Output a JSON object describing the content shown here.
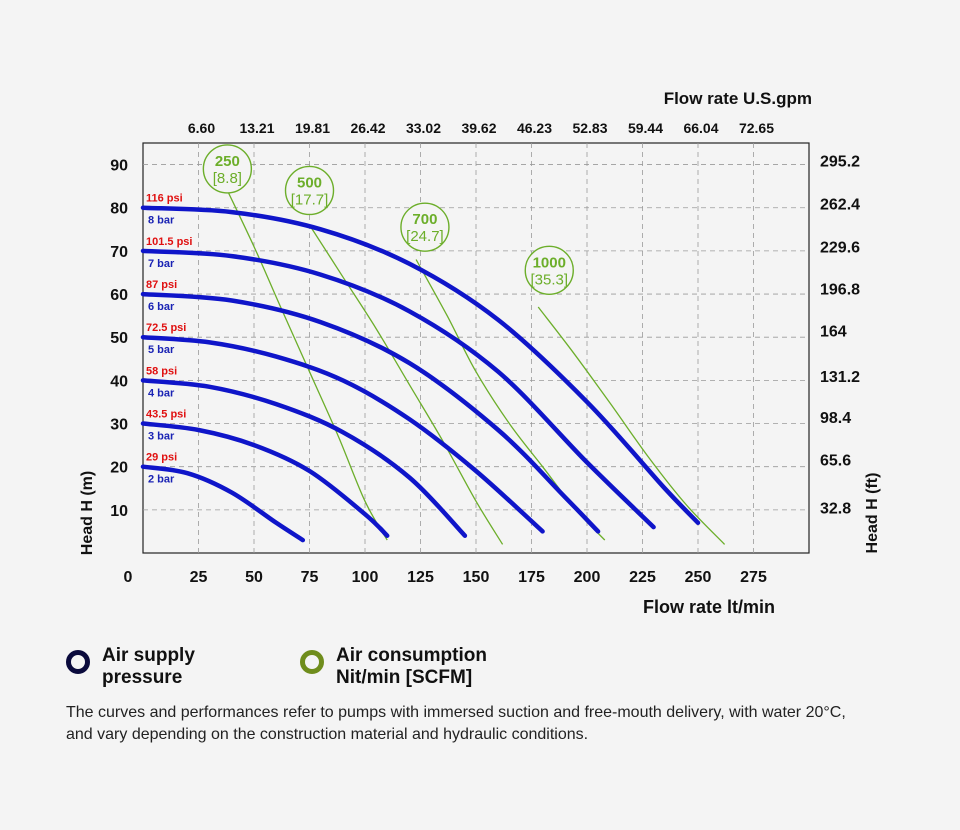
{
  "chart_data": {
    "type": "line",
    "xlabel_bottom": "Flow rate lt/min",
    "xlabel_top": "Flow rate U.S.gpm",
    "ylabel_left": "Head H (m)",
    "ylabel_right": "Head H (ft)",
    "xlim": [
      0,
      300
    ],
    "ylim": [
      0,
      95
    ],
    "x_ticks": [
      25,
      50,
      75,
      100,
      125,
      150,
      175,
      200,
      225,
      250,
      275
    ],
    "x_origin_label": "0",
    "y_ticks": [
      10,
      20,
      30,
      40,
      50,
      60,
      70,
      80,
      90
    ],
    "top_ticks": [
      {
        "x": 25,
        "label": "6.60"
      },
      {
        "x": 50,
        "label": "13.21"
      },
      {
        "x": 75,
        "label": "19.81"
      },
      {
        "x": 100,
        "label": "26.42"
      },
      {
        "x": 125,
        "label": "33.02"
      },
      {
        "x": 150,
        "label": "39.62"
      },
      {
        "x": 175,
        "label": "46.23"
      },
      {
        "x": 200,
        "label": "52.83"
      },
      {
        "x": 225,
        "label": "59.44"
      },
      {
        "x": 250,
        "label": "66.04"
      },
      {
        "x": 275,
        "label": "72.65"
      }
    ],
    "right_ticks": [
      {
        "y": 91,
        "label": "295.2"
      },
      {
        "y": 81,
        "label": "262.4"
      },
      {
        "y": 71,
        "label": "229.6"
      },
      {
        "y": 61.3,
        "label": "196.8"
      },
      {
        "y": 51.5,
        "label": "164"
      },
      {
        "y": 41,
        "label": "131.2"
      },
      {
        "y": 31.5,
        "label": "98.4"
      },
      {
        "y": 21.7,
        "label": "65.6"
      },
      {
        "y": 10.6,
        "label": "32.8"
      }
    ],
    "grid": true,
    "pressure_series": [
      {
        "psi": "29 psi",
        "bar": "2 bar",
        "x": [
          0,
          20,
          40,
          60,
          72
        ],
        "y": [
          20,
          18.5,
          14,
          7,
          3
        ]
      },
      {
        "psi": "43.5 psi",
        "bar": "3 bar",
        "x": [
          0,
          25,
          50,
          75,
          100,
          110
        ],
        "y": [
          30,
          28.5,
          25,
          19,
          9,
          4
        ]
      },
      {
        "psi": "58 psi",
        "bar": "4 bar",
        "x": [
          0,
          30,
          60,
          90,
          120,
          145
        ],
        "y": [
          40,
          38.5,
          34.5,
          28,
          17.5,
          4
        ]
      },
      {
        "psi": "72.5 psi",
        "bar": "5 bar",
        "x": [
          0,
          30,
          60,
          90,
          120,
          150,
          180
        ],
        "y": [
          50,
          48.8,
          45.5,
          40,
          31,
          19,
          5
        ]
      },
      {
        "psi": "87 psi",
        "bar": "6 bar",
        "x": [
          0,
          40,
          80,
          120,
          160,
          190,
          205
        ],
        "y": [
          60,
          58.5,
          53.5,
          44,
          28.5,
          13,
          5
        ]
      },
      {
        "psi": "101.5 psi",
        "bar": "7 bar",
        "x": [
          0,
          40,
          80,
          120,
          160,
          200,
          230
        ],
        "y": [
          70,
          68.8,
          64.5,
          56,
          42,
          21,
          6
        ]
      },
      {
        "psi": "116 psi",
        "bar": "8 bar",
        "x": [
          0,
          40,
          80,
          120,
          160,
          200,
          235,
          250
        ],
        "y": [
          80,
          79,
          75,
          67,
          54,
          35,
          15,
          7
        ]
      }
    ],
    "consumption_series": [
      {
        "value": "250",
        "scfm": "[8.8]",
        "label_x": 38,
        "label_y": 89,
        "x": [
          38,
          50,
          62,
          75,
          88,
          100,
          110
        ],
        "y": [
          84,
          71,
          57,
          42,
          27,
          12,
          3
        ]
      },
      {
        "value": "500",
        "scfm": "[17.7]",
        "label_x": 75,
        "label_y": 84,
        "x": [
          75,
          90,
          105,
          120,
          135,
          150,
          162
        ],
        "y": [
          76,
          64,
          52,
          39,
          26,
          12,
          2
        ]
      },
      {
        "value": "700",
        "scfm": "[24.7]",
        "label_x": 127,
        "label_y": 75.5,
        "x": [
          123,
          137,
          150,
          165,
          180,
          195,
          208
        ],
        "y": [
          68,
          55,
          42,
          30,
          20,
          10,
          3
        ]
      },
      {
        "value": "1000",
        "scfm": "[35.3]",
        "label_x": 183,
        "label_y": 65.5,
        "x": [
          178,
          193,
          210,
          228,
          245,
          262
        ],
        "y": [
          57,
          47,
          35,
          22,
          11,
          2
        ]
      }
    ]
  },
  "legend": {
    "pressure_label": "Air supply pressure",
    "consumption_label": "Air consumption Nit/min [SCFM]"
  },
  "note": "The curves and performances refer to pumps with immersed suction and free-mouth delivery, with water 20°C, and vary depending on the construction material and hydraulic conditions.",
  "colors": {
    "pressure": "#0f15c9",
    "consumption": "#6cae2a",
    "psi_text": "#e01010",
    "bar_text": "#1a23b4",
    "grid": "#9a9a9a",
    "legend_pressure_ring": "#0a0a3c",
    "legend_consumption_ring": "#6f8d1c"
  }
}
